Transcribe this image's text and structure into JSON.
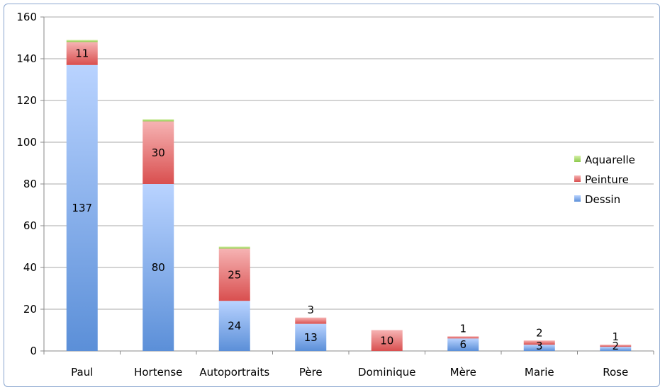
{
  "chart_data": {
    "type": "bar",
    "stacked": true,
    "categories": [
      "Paul",
      "Hortense",
      "Autoportraits",
      "Père",
      "Dominique",
      "Mère",
      "Marie",
      "Rose"
    ],
    "series": [
      {
        "name": "Dessin",
        "color": "#6b9be0",
        "values": [
          137,
          80,
          24,
          13,
          0,
          6,
          3,
          2
        ],
        "labels": [
          "137",
          "80",
          "24",
          "13",
          "",
          "6",
          "3",
          "2"
        ]
      },
      {
        "name": "Peinture",
        "color": "#e26a6a",
        "values": [
          11,
          30,
          25,
          3,
          10,
          1,
          2,
          1
        ],
        "labels": [
          "11",
          "30",
          "25",
          "3",
          "10",
          "1",
          "2",
          "1"
        ]
      },
      {
        "name": "Aquarelle",
        "color": "#a6d96a",
        "values": [
          1,
          1,
          1,
          0,
          0,
          0,
          0,
          0
        ],
        "labels": [
          "",
          "",
          "",
          "",
          "",
          "",
          "",
          ""
        ]
      }
    ],
    "ylim": [
      0,
      160
    ],
    "yticks": [
      "0",
      "20",
      "40",
      "60",
      "80",
      "100",
      "120",
      "140",
      "160"
    ],
    "grid": true,
    "legend_position": "right",
    "title": "",
    "xlabel": "",
    "ylabel": ""
  }
}
